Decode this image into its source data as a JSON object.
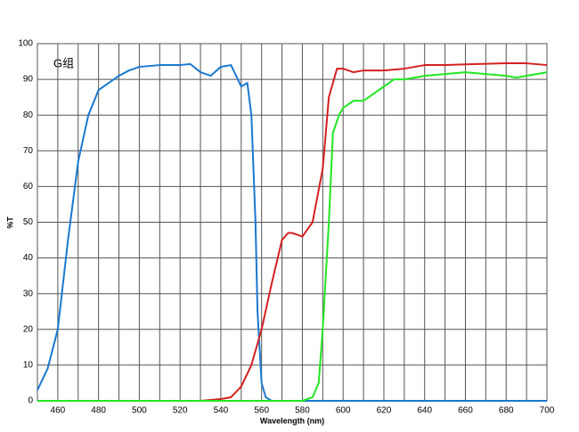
{
  "chart_data": {
    "type": "line",
    "annotation": "G组",
    "xlabel": "Wavelength (nm)",
    "ylabel": "%T",
    "xlim": [
      450,
      700
    ],
    "ylim": [
      0,
      100
    ],
    "xticks": [
      460,
      480,
      500,
      520,
      540,
      560,
      580,
      600,
      620,
      640,
      660,
      680,
      700
    ],
    "xminorticks": [
      470,
      490,
      510,
      530,
      550,
      570,
      590,
      610,
      630,
      650,
      670,
      690
    ],
    "yticks": [
      0,
      10,
      20,
      30,
      40,
      50,
      60,
      70,
      80,
      90,
      100
    ],
    "grid": true,
    "series": [
      {
        "color": "#1a78d0",
        "x": [
          450,
          455,
          460,
          465,
          470,
          475,
          480,
          485,
          490,
          495,
          500,
          510,
          520,
          525,
          530,
          535,
          540,
          545,
          550,
          553,
          555,
          557,
          558,
          560,
          562,
          565,
          570,
          580,
          600,
          650,
          700
        ],
        "values": [
          3,
          9,
          20,
          45,
          67,
          80,
          87,
          89,
          91,
          92.5,
          93.5,
          94,
          94,
          94.3,
          92,
          91,
          93.5,
          94,
          88,
          89,
          80,
          50,
          25,
          5,
          1,
          0,
          0,
          0,
          0,
          0,
          0
        ]
      },
      {
        "color": "#d42020",
        "x": [
          450,
          500,
          530,
          540,
          545,
          550,
          555,
          560,
          565,
          570,
          573,
          575,
          580,
          585,
          590,
          593,
          597,
          600,
          605,
          610,
          620,
          630,
          640,
          650,
          660,
          680,
          690,
          700
        ],
        "values": [
          0,
          0,
          0,
          0.5,
          1,
          4,
          10,
          20,
          33,
          45,
          47,
          47,
          46,
          50,
          65,
          85,
          93,
          93,
          92,
          92.5,
          92.5,
          93,
          94,
          94,
          94.2,
          94.5,
          94.5,
          94
        ]
      },
      {
        "color": "#22e622",
        "x": [
          450,
          500,
          550,
          580,
          585,
          588,
          590,
          593,
          595,
          598,
          600,
          605,
          610,
          615,
          620,
          625,
          630,
          640,
          650,
          660,
          670,
          680,
          685,
          690,
          700
        ],
        "values": [
          0,
          0,
          0,
          0,
          1,
          5,
          20,
          50,
          75,
          80,
          82,
          84,
          84,
          86,
          88,
          90,
          90,
          91,
          91.5,
          92,
          91.5,
          91,
          90.5,
          91,
          92
        ]
      }
    ]
  }
}
